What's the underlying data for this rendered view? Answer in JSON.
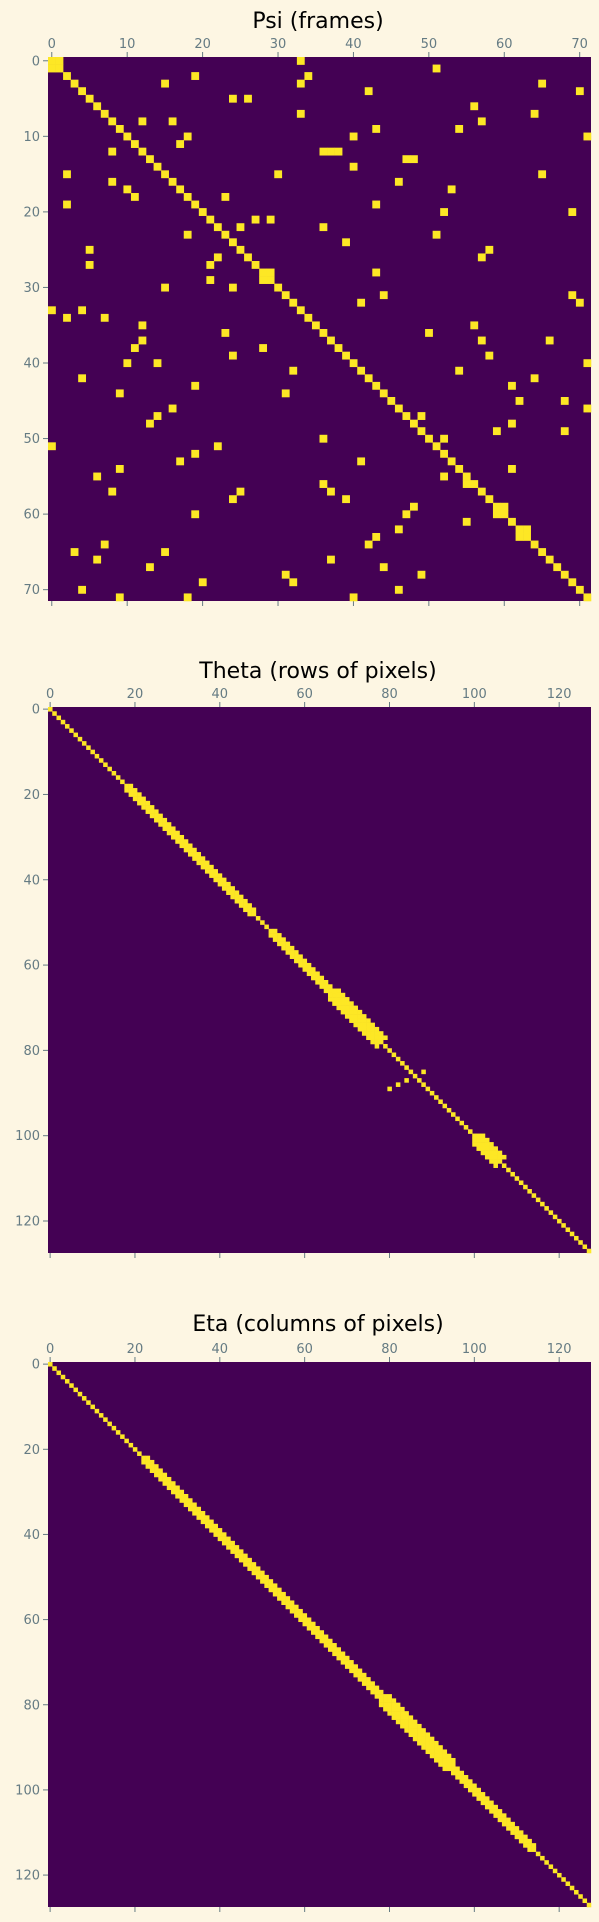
{
  "colors": {
    "background": "#fdf6e3",
    "matrix_off": "#440154",
    "matrix_on": "#fde725",
    "tick_text": "#657b83"
  },
  "chart_data": [
    {
      "type": "heatmap",
      "title": "Psi (frames)",
      "size": 72,
      "colormap": "viridis (binary: 0 = dark purple, 1 = yellow)",
      "xticks": [
        0,
        10,
        20,
        30,
        40,
        50,
        60,
        70
      ],
      "yticks": [
        0,
        10,
        20,
        30,
        40,
        50,
        60,
        70
      ],
      "diagonal": "ones on the main diagonal",
      "blocks": [
        [
          0,
          1
        ],
        [
          28,
          29
        ],
        [
          59,
          60
        ],
        [
          62,
          63
        ]
      ],
      "points": [
        [
          3,
          15
        ],
        [
          2,
          19
        ],
        [
          5,
          24
        ],
        [
          5,
          26
        ],
        [
          3,
          33
        ],
        [
          4,
          42
        ],
        [
          3,
          65
        ],
        [
          2,
          34
        ],
        [
          4,
          70
        ],
        [
          1,
          51
        ],
        [
          0,
          33
        ],
        [
          8,
          12
        ],
        [
          8,
          16
        ],
        [
          7,
          33
        ],
        [
          7,
          64
        ],
        [
          6,
          56
        ],
        [
          8,
          57
        ],
        [
          9,
          43
        ],
        [
          9,
          54
        ],
        [
          10,
          18
        ],
        [
          10,
          40
        ],
        [
          10,
          71
        ],
        [
          11,
          17
        ],
        [
          12,
          8
        ],
        [
          12,
          36
        ],
        [
          12,
          37
        ],
        [
          12,
          38
        ],
        [
          13,
          47
        ],
        [
          13,
          48
        ],
        [
          14,
          40
        ],
        [
          15,
          2
        ],
        [
          15,
          30
        ],
        [
          15,
          65
        ],
        [
          16,
          8
        ],
        [
          16,
          46
        ],
        [
          17,
          10
        ],
        [
          17,
          53
        ],
        [
          18,
          11
        ],
        [
          18,
          23
        ],
        [
          19,
          2
        ],
        [
          19,
          43
        ],
        [
          20,
          52
        ],
        [
          20,
          69
        ],
        [
          21,
          27
        ],
        [
          21,
          29
        ],
        [
          22,
          25
        ],
        [
          22,
          36
        ],
        [
          23,
          18
        ],
        [
          23,
          51
        ],
        [
          24,
          39
        ],
        [
          25,
          5
        ],
        [
          25,
          58
        ],
        [
          26,
          22
        ],
        [
          26,
          57
        ],
        [
          27,
          5
        ],
        [
          27,
          21
        ],
        [
          28,
          43
        ],
        [
          29,
          21
        ],
        [
          30,
          15
        ],
        [
          30,
          24
        ],
        [
          31,
          44
        ],
        [
          31,
          69
        ],
        [
          32,
          41
        ],
        [
          32,
          70
        ],
        [
          33,
          0
        ],
        [
          34,
          2
        ],
        [
          34,
          7
        ],
        [
          33,
          4
        ],
        [
          35,
          12
        ],
        [
          35,
          56
        ],
        [
          36,
          23
        ],
        [
          36,
          50
        ],
        [
          37,
          12
        ],
        [
          37,
          57
        ],
        [
          37,
          66
        ],
        [
          38,
          11
        ],
        [
          38,
          28
        ],
        [
          39,
          24
        ],
        [
          39,
          58
        ],
        [
          40,
          10
        ],
        [
          40,
          14
        ],
        [
          40,
          71
        ],
        [
          41,
          32
        ],
        [
          41,
          54
        ],
        [
          42,
          4
        ],
        [
          42,
          64
        ],
        [
          43,
          19
        ],
        [
          43,
          61
        ],
        [
          44,
          9
        ],
        [
          44,
          31
        ],
        [
          45,
          68
        ],
        [
          45,
          62
        ],
        [
          46,
          16
        ],
        [
          46,
          71
        ],
        [
          47,
          14
        ],
        [
          47,
          49
        ],
        [
          48,
          13
        ],
        [
          48,
          61
        ],
        [
          49,
          59
        ],
        [
          49,
          68
        ],
        [
          50,
          36
        ],
        [
          50,
          52
        ],
        [
          51,
          0
        ],
        [
          51,
          22
        ],
        [
          52,
          19
        ],
        [
          53,
          17
        ],
        [
          53,
          41
        ],
        [
          54,
          9
        ],
        [
          54,
          61
        ],
        [
          55,
          6
        ],
        [
          55,
          52
        ],
        [
          56,
          36
        ],
        [
          56,
          55
        ],
        [
          57,
          8
        ],
        [
          57,
          25
        ],
        [
          57,
          37
        ],
        [
          58,
          24
        ],
        [
          58,
          39
        ],
        [
          59,
          48
        ],
        [
          60,
          19
        ],
        [
          60,
          47
        ],
        [
          61,
          55
        ],
        [
          62,
          46
        ],
        [
          63,
          43
        ],
        [
          64,
          7
        ],
        [
          64,
          42
        ],
        [
          65,
          3
        ],
        [
          65,
          15
        ],
        [
          66,
          6
        ],
        [
          66,
          37
        ],
        [
          67,
          13
        ],
        [
          67,
          44
        ],
        [
          68,
          31
        ],
        [
          68,
          49
        ],
        [
          69,
          20
        ],
        [
          69,
          32
        ],
        [
          70,
          4
        ],
        [
          70,
          46
        ],
        [
          71,
          9
        ],
        [
          71,
          18
        ],
        [
          71,
          40
        ]
      ]
    },
    {
      "type": "heatmap",
      "title": "Theta (rows of pixels)",
      "size": 128,
      "colormap": "viridis (binary: 0 = dark purple, 1 = yellow)",
      "xticks": [
        0,
        20,
        40,
        60,
        80,
        100,
        120
      ],
      "yticks": [
        0,
        20,
        40,
        60,
        80,
        100,
        120
      ],
      "diagonal": "near-diagonal band, one pixel wide with a wider section",
      "band_ranges": [
        [
          18,
          48,
          1
        ],
        [
          52,
          66,
          1
        ],
        [
          66,
          72,
          2
        ],
        [
          72,
          78,
          2
        ],
        [
          100,
          106,
          2
        ]
      ],
      "points": [
        [
          85,
          88
        ],
        [
          86,
          86
        ],
        [
          87,
          84
        ],
        [
          88,
          82
        ],
        [
          89,
          80
        ]
      ]
    },
    {
      "type": "heatmap",
      "title": "Eta (columns of pixels)",
      "size": 128,
      "colormap": "viridis (binary: 0 = dark purple, 1 = yellow)",
      "xticks": [
        0,
        20,
        40,
        60,
        80,
        100,
        120
      ],
      "yticks": [
        0,
        20,
        40,
        60,
        80,
        100,
        120
      ],
      "diagonal": "near-diagonal band, one pixel wide with a wider section",
      "band_ranges": [
        [
          22,
          76,
          1
        ],
        [
          78,
          94,
          2
        ],
        [
          76,
          78,
          1
        ],
        [
          94,
          114,
          1
        ]
      ],
      "points": []
    }
  ]
}
